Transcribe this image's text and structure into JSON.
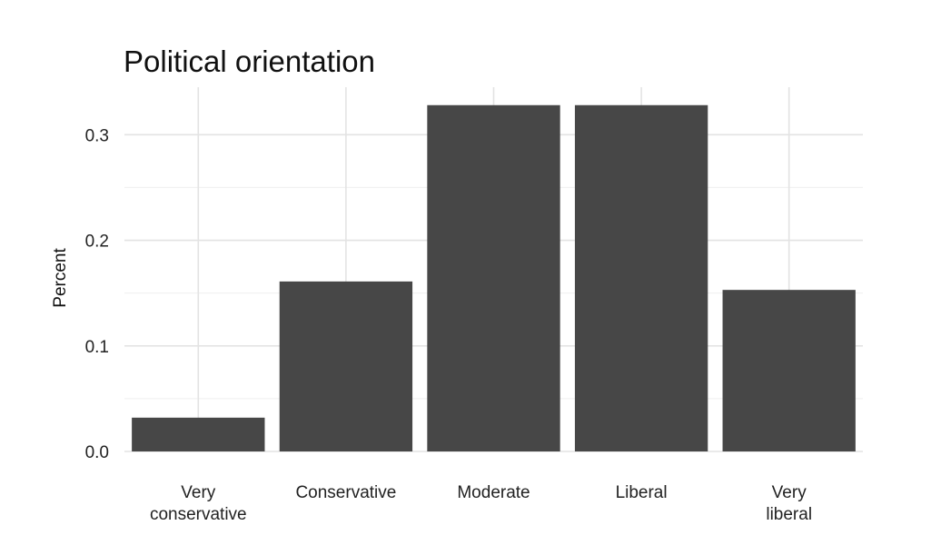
{
  "chart_data": {
    "type": "bar",
    "title": "Political orientation",
    "xlabel": "",
    "ylabel": "Percent",
    "categories": [
      [
        "Very",
        "conservative"
      ],
      [
        "Conservative"
      ],
      [
        "Moderate"
      ],
      [
        "Liberal"
      ],
      [
        "Very",
        "liberal"
      ]
    ],
    "values": [
      0.032,
      0.161,
      0.328,
      0.328,
      0.153
    ],
    "ylim": [
      0,
      0.345
    ],
    "yticks": [
      0.0,
      0.1,
      0.2,
      0.3
    ],
    "ytick_labels": [
      "0.0",
      "0.1",
      "0.2",
      "0.3"
    ],
    "grid": true,
    "bar_color": "#474747",
    "grid_color": "#e3e3e3"
  }
}
